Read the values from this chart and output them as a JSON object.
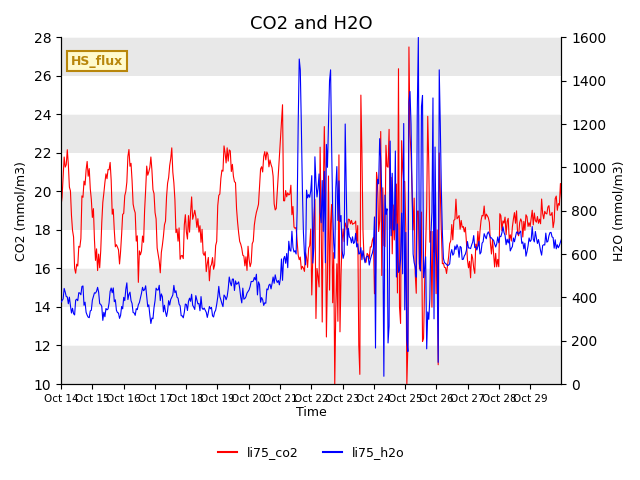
{
  "title": "CO2 and H2O",
  "xlabel": "Time",
  "ylabel_left": "CO2 (mmol/m3)",
  "ylabel_right": "H2O (mmol/m3)",
  "ylim_left": [
    10,
    28
  ],
  "ylim_right": [
    0,
    1600
  ],
  "yticks_left": [
    10,
    12,
    14,
    16,
    18,
    20,
    22,
    24,
    26,
    28
  ],
  "yticks_right": [
    0,
    200,
    400,
    600,
    800,
    1000,
    1200,
    1400,
    1600
  ],
  "x_tick_labels": [
    "Oct 14",
    "Oct 15",
    "Oct 16",
    "Oct 17",
    "Oct 18",
    "Oct 19",
    "Oct 20",
    "Oct 21",
    "Oct 22",
    "Oct 23",
    "Oct 24",
    "Oct 25",
    "Oct 26",
    "Oct 27",
    "Oct 28",
    "Oct 29"
  ],
  "annotation_text": "HS_flux",
  "annotation_color": "#b8860b",
  "annotation_bg": "#fffacd",
  "legend_labels": [
    "li75_co2",
    "li75_h2o"
  ],
  "line_colors": [
    "red",
    "blue"
  ],
  "background_color": "white",
  "band_color": "#e8e8e8",
  "title_fontsize": 13,
  "n_days": 16,
  "n_points": 480
}
